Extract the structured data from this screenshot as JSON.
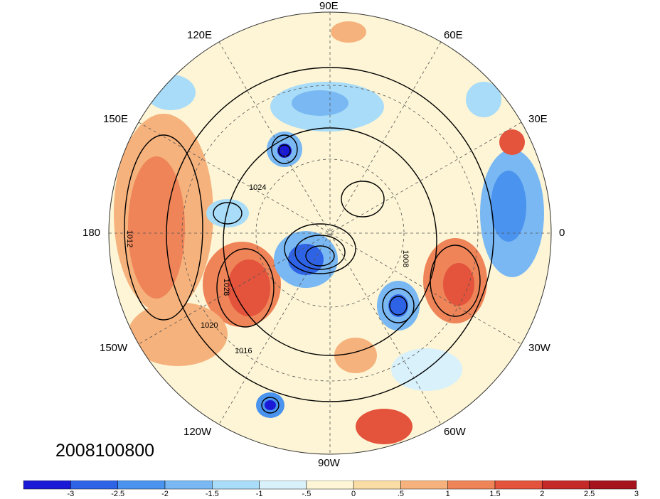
{
  "map": {
    "date_label": "2008100800",
    "longitude_labels": [
      "90E",
      "60E",
      "30E",
      "0",
      "30W",
      "60W",
      "90W",
      "120W",
      "150W",
      "180",
      "150E",
      "120E"
    ],
    "contour_labels": [
      "1012",
      "1016",
      "1020",
      "1024",
      "1028",
      "1008"
    ]
  },
  "colorbar": {
    "colors": [
      "#1a1ad6",
      "#2f63e6",
      "#4a93ee",
      "#79b8f3",
      "#a8dcf8",
      "#d9f1fb",
      "#fdf5d5",
      "#fadca5",
      "#f6b27c",
      "#ee8458",
      "#e4533c",
      "#c42a28",
      "#a5131d"
    ],
    "tick_labels": [
      "-3",
      "-2.5",
      "-2",
      "-1.5",
      "-1",
      "-.5",
      "0",
      ".5",
      "1",
      "1.5",
      "2",
      "2.5",
      "3"
    ]
  }
}
